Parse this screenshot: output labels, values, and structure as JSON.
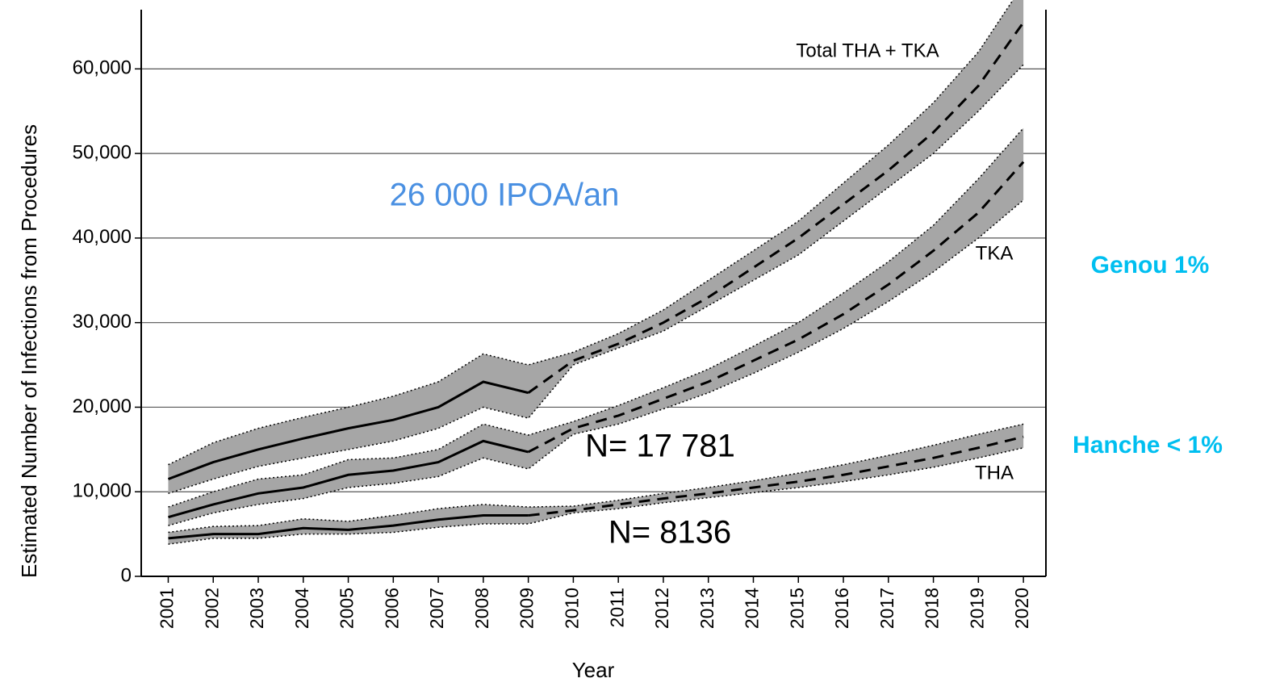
{
  "chart_data": {
    "type": "line",
    "ylabel": "Estimated Number of Infections from Procedures",
    "xlabel": "Year",
    "x": [
      2001,
      2002,
      2003,
      2004,
      2005,
      2006,
      2007,
      2008,
      2009,
      2010,
      2011,
      2012,
      2013,
      2014,
      2015,
      2016,
      2017,
      2018,
      2019,
      2020
    ],
    "xlim": [
      2000.4,
      2020.5
    ],
    "xticks": [
      2001,
      2002,
      2003,
      2004,
      2005,
      2006,
      2007,
      2008,
      2009,
      2010,
      2011,
      2012,
      2013,
      2014,
      2015,
      2016,
      2017,
      2018,
      2019,
      2020
    ],
    "ylim": [
      0,
      67000
    ],
    "yticks": [
      0,
      {
        "value": 10000,
        "label": "10,000"
      },
      {
        "value": 20000,
        "label": "20,000"
      },
      {
        "value": 30000,
        "label": "30,000"
      },
      {
        "value": 40000,
        "label": "40,000"
      },
      {
        "value": 50000,
        "label": "50,000"
      },
      {
        "value": 60000,
        "label": "60,000"
      }
    ],
    "grid": true,
    "dashed_from": 2009,
    "band_color": "#a6a6a6",
    "series": [
      {
        "name": "Total THA + TKA",
        "color": "#000000",
        "values": [
          11500,
          13500,
          15000,
          16300,
          17500,
          18500,
          20000,
          23000,
          21700,
          25500,
          27500,
          30000,
          33000,
          36500,
          40000,
          44000,
          48000,
          52500,
          58000,
          65500
        ],
        "upper": [
          13200,
          15800,
          17500,
          18800,
          20000,
          21300,
          23000,
          26300,
          25000,
          26500,
          28700,
          31500,
          35000,
          38500,
          42000,
          46500,
          51000,
          56000,
          62000,
          70000
        ],
        "lower": [
          9800,
          11500,
          13000,
          14000,
          15000,
          16000,
          17500,
          20000,
          18700,
          25000,
          27000,
          29000,
          32000,
          35000,
          38000,
          42000,
          46000,
          50000,
          55000,
          60500
        ]
      },
      {
        "name": "TKA",
        "color": "#000000",
        "values": [
          7000,
          8500,
          9800,
          10500,
          12000,
          12500,
          13500,
          16000,
          14700,
          17500,
          19000,
          21000,
          23000,
          25500,
          28000,
          31000,
          34500,
          38500,
          43000,
          49000
        ],
        "upper": [
          8200,
          10000,
          11500,
          12000,
          13800,
          14000,
          15000,
          18000,
          16700,
          18300,
          20200,
          22300,
          24500,
          27200,
          30000,
          33500,
          37200,
          41500,
          47000,
          53000
        ],
        "lower": [
          6000,
          7500,
          8500,
          9200,
          10500,
          11000,
          11800,
          14000,
          12700,
          16800,
          18000,
          19800,
          21700,
          24000,
          26500,
          29300,
          32500,
          36000,
          40000,
          44500
        ]
      },
      {
        "name": "THA",
        "color": "#000000",
        "values": [
          4500,
          5000,
          5000,
          5700,
          5500,
          6000,
          6700,
          7200,
          7200,
          7800,
          8500,
          9200,
          9800,
          10500,
          11200,
          12000,
          13000,
          14000,
          15200,
          16500
        ],
        "upper": [
          5200,
          5900,
          6000,
          6800,
          6500,
          7200,
          8000,
          8500,
          8200,
          8300,
          9000,
          9800,
          10500,
          11300,
          12200,
          13200,
          14300,
          15500,
          16800,
          18000
        ],
        "lower": [
          3800,
          4500,
          4500,
          5000,
          5000,
          5200,
          5800,
          6200,
          6200,
          7500,
          8000,
          8700,
          9300,
          9900,
          10500,
          11200,
          12000,
          12900,
          14000,
          15200
        ]
      }
    ],
    "annotations": [
      {
        "text": "26 000 IPOA/an",
        "color": "#4a90e2"
      },
      {
        "text": "N= 17 781",
        "color": "#000000"
      },
      {
        "text": "N= 8136",
        "color": "#000000"
      },
      {
        "text": "Genou 1%",
        "color": "#00bff0"
      },
      {
        "text": "Hanche < 1%",
        "color": "#00bff0"
      }
    ]
  }
}
